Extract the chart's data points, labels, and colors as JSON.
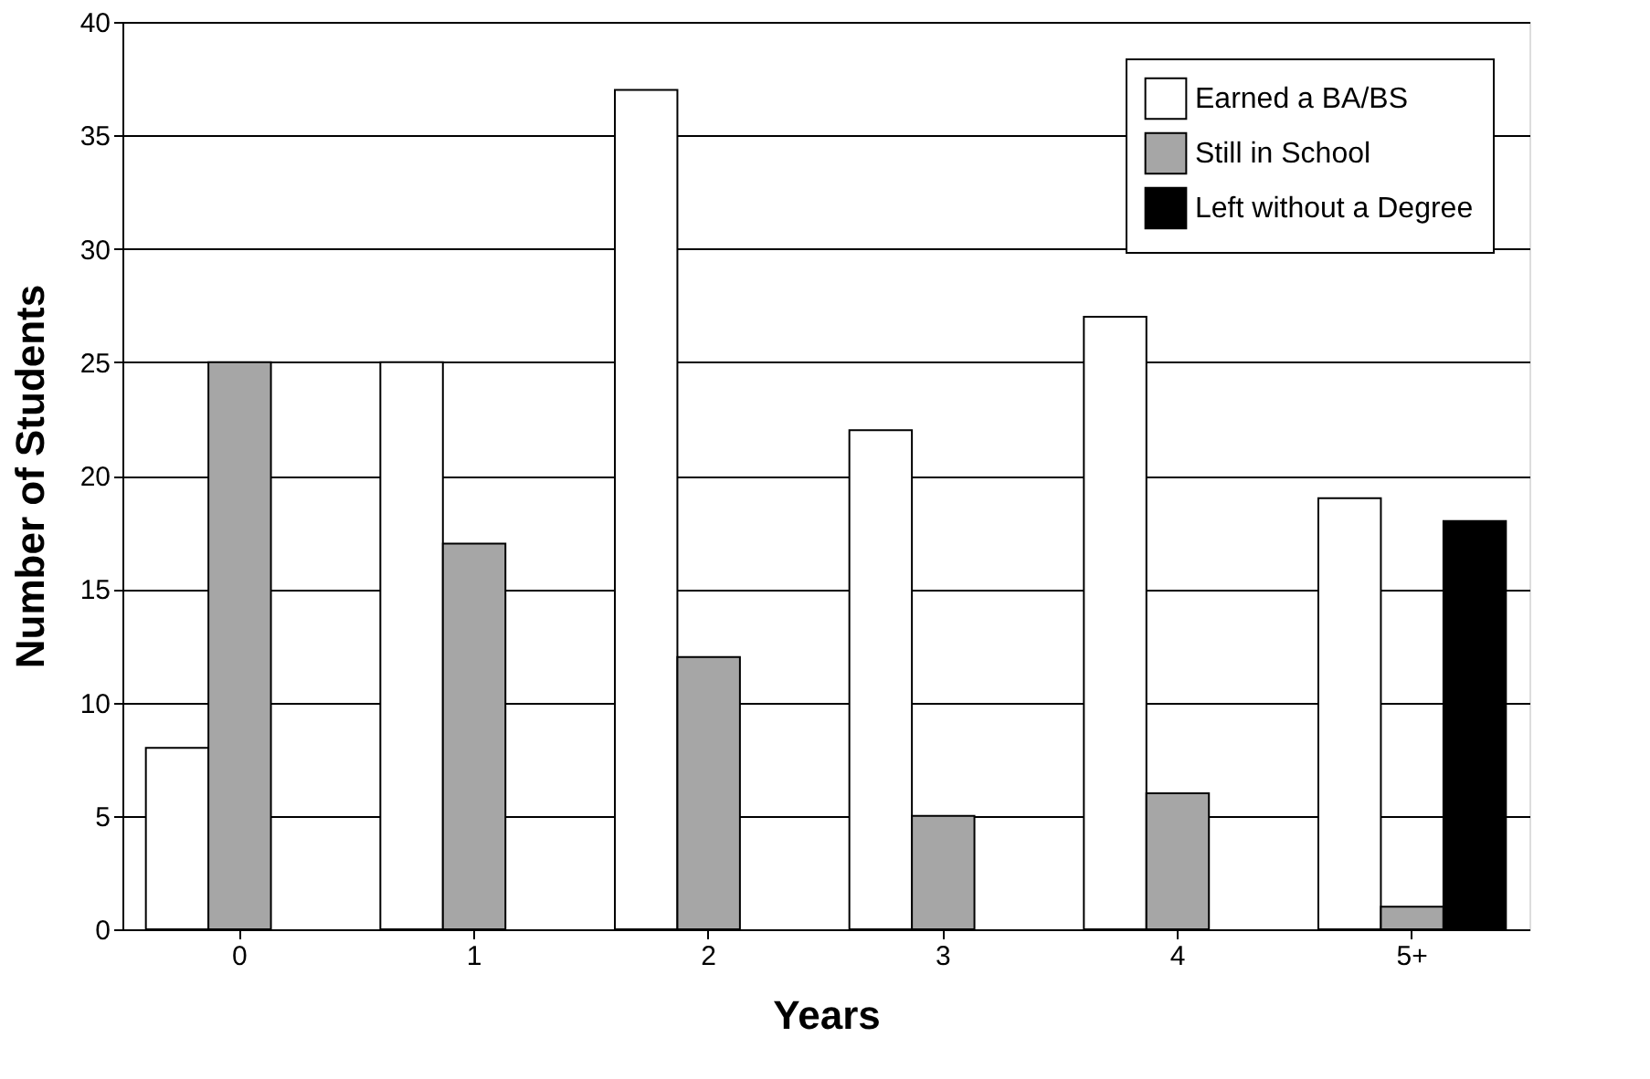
{
  "chart_data": {
    "type": "bar",
    "xlabel": "Years",
    "ylabel": "Number of Students",
    "categories": [
      "0",
      "1",
      "2",
      "3",
      "4",
      "5+"
    ],
    "series": [
      {
        "name": "Earned a BA/BS",
        "color": "#ffffff",
        "values": [
          8,
          25,
          37,
          22,
          27,
          19
        ]
      },
      {
        "name": "Still in School",
        "color": "#a6a6a6",
        "values": [
          25,
          17,
          12,
          5,
          6,
          1
        ]
      },
      {
        "name": "Left without a Degree",
        "color": "#000000",
        "values": [
          null,
          null,
          null,
          null,
          null,
          18
        ]
      }
    ],
    "ylim": [
      0,
      40
    ],
    "yticks": [
      0,
      5,
      10,
      15,
      20,
      25,
      30,
      35,
      40
    ],
    "grid": "y",
    "legend": "top right"
  }
}
